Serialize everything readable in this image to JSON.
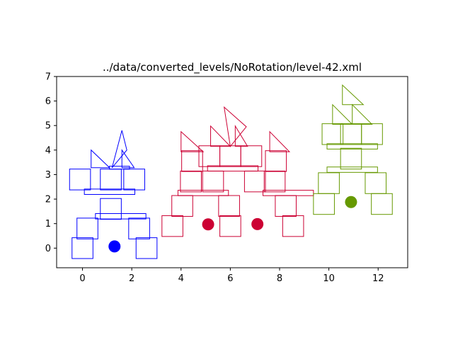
{
  "chart_data": {
    "type": "scatter",
    "title": "../data/converted_levels/NoRotation/level-42.xml",
    "xlabel": "",
    "ylabel": "",
    "xlim": [
      -1.05,
      13.2
    ],
    "ylim": [
      -0.8,
      7.0
    ],
    "xticks": [
      0,
      2,
      4,
      6,
      8,
      10,
      12
    ],
    "yticks": [
      0,
      1,
      2,
      3,
      4,
      5,
      6,
      7
    ],
    "grid": false,
    "colors": {
      "blue": "#0000ff",
      "red": "#cc0033",
      "green": "#669900"
    },
    "series": [
      {
        "color": "blue",
        "squares": [
          [
            0,
            0
          ],
          [
            2.6,
            0
          ],
          [
            0.2,
            0.8
          ],
          [
            2.3,
            0.8
          ],
          [
            1.15,
            1.6
          ],
          [
            -0.1,
            2.8
          ],
          [
            1.15,
            2.8
          ],
          [
            2.1,
            2.8
          ]
        ],
        "bars": [
          [
            1.55,
            1.3,
            2.05,
            0.22
          ],
          [
            1.1,
            2.3,
            2.05,
            0.22
          ],
          [
            1.5,
            3.28,
            0.82,
            0.12
          ]
        ],
        "triangles": [
          [
            1.2,
            3.28,
            1.6,
            4.8,
            1.8,
            4.0
          ],
          [
            0.35,
            3.28,
            0.35,
            4.0,
            1.1,
            3.28
          ],
          [
            1.6,
            3.28,
            1.6,
            4.0,
            2.1,
            3.28
          ]
        ],
        "circles": [
          [
            1.3,
            0.07
          ]
        ]
      },
      {
        "color": "red",
        "squares": [
          [
            3.65,
            0.9
          ],
          [
            6.0,
            0.9
          ],
          [
            8.55,
            0.9
          ],
          [
            4.05,
            1.72
          ],
          [
            5.95,
            1.72
          ],
          [
            8.25,
            1.72
          ],
          [
            4.4,
            2.72
          ],
          [
            5.3,
            2.72
          ],
          [
            7.0,
            2.72
          ],
          [
            7.8,
            2.72
          ],
          [
            4.45,
            3.55
          ],
          [
            5.15,
            3.75
          ],
          [
            6.0,
            3.75
          ],
          [
            6.85,
            3.75
          ],
          [
            7.85,
            3.55
          ]
        ],
        "bars": [
          [
            4.9,
            2.25,
            2.05,
            0.22
          ],
          [
            8.35,
            2.25,
            2.05,
            0.22
          ],
          [
            6.1,
            3.25,
            2.05,
            0.22
          ]
        ],
        "triangles": [
          [
            4.0,
            3.93,
            4.0,
            4.75,
            4.9,
            3.93
          ],
          [
            5.2,
            4.15,
            5.2,
            4.98,
            6.0,
            4.15
          ],
          [
            6.0,
            4.15,
            5.75,
            5.75,
            6.65,
            4.95
          ],
          [
            6.2,
            4.15,
            6.2,
            4.98,
            6.7,
            4.15
          ],
          [
            7.6,
            3.93,
            7.6,
            4.75,
            8.4,
            3.93
          ]
        ],
        "circles": [
          [
            5.1,
            0.97
          ],
          [
            7.1,
            0.98
          ]
        ]
      },
      {
        "color": "green",
        "squares": [
          [
            9.8,
            1.8
          ],
          [
            10.0,
            2.65
          ],
          [
            11.9,
            2.65
          ],
          [
            12.15,
            1.8
          ],
          [
            10.9,
            3.65
          ],
          [
            10.15,
            4.65
          ],
          [
            10.9,
            4.65
          ],
          [
            11.75,
            4.65
          ]
        ],
        "bars": [
          [
            10.95,
            3.2,
            2.05,
            0.22
          ],
          [
            10.95,
            4.15,
            2.05,
            0.22
          ]
        ],
        "triangles": [
          [
            10.15,
            5.05,
            10.15,
            5.85,
            10.95,
            5.05
          ],
          [
            10.55,
            5.85,
            10.55,
            6.65,
            11.4,
            5.85
          ],
          [
            10.95,
            5.05,
            10.95,
            5.85,
            11.75,
            5.05
          ]
        ],
        "circles": [
          [
            10.9,
            1.88
          ]
        ]
      }
    ]
  }
}
